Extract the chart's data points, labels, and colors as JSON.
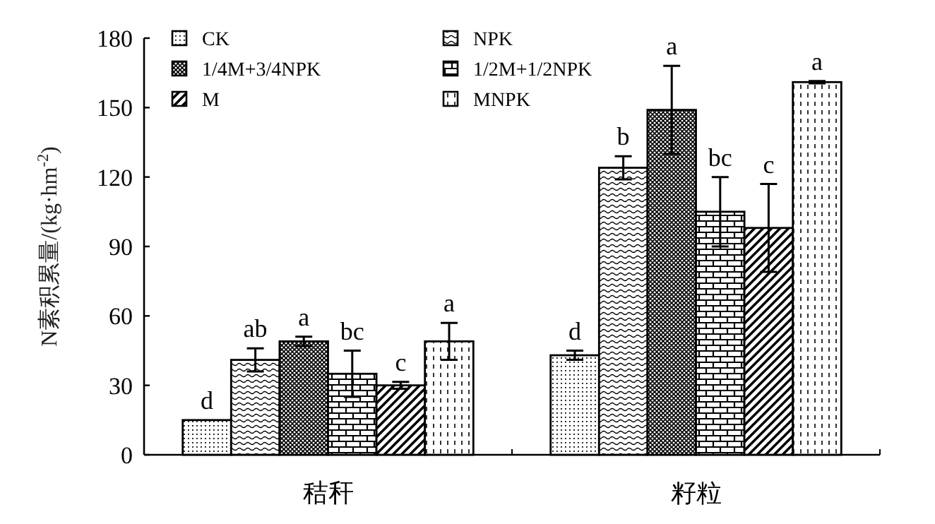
{
  "chart_data": {
    "type": "bar",
    "ylabel": "N素积累量/(kg·hm$^{-2}$)",
    "categories": [
      "秸秆",
      "籽粒"
    ],
    "ylim": [
      0,
      180
    ],
    "yticks": [
      0,
      30,
      60,
      90,
      120,
      150,
      180
    ],
    "legend": "top left",
    "grid": false,
    "series": [
      {
        "name": "CK",
        "color": "#000000",
        "values": [
          15,
          43
        ],
        "errors": [
          null,
          2
        ],
        "value_labels": [
          "d",
          "d"
        ]
      },
      {
        "name": "NPK",
        "color": "#000000",
        "values": [
          41,
          124
        ],
        "errors": [
          5,
          5
        ],
        "value_labels": [
          "ab",
          "b"
        ]
      },
      {
        "name": "1/4M+3/4NPK",
        "color": "#000000",
        "values": [
          49,
          149
        ],
        "errors": [
          2,
          19
        ],
        "value_labels": [
          "a",
          "a"
        ]
      },
      {
        "name": "1/2M+1/2NPK",
        "color": "#000000",
        "values": [
          35,
          105
        ],
        "errors": [
          10,
          15
        ],
        "value_labels": [
          "bc",
          "bc"
        ]
      },
      {
        "name": "M",
        "color": "#000000",
        "values": [
          30,
          98
        ],
        "errors": [
          1.5,
          19
        ],
        "value_labels": [
          "c",
          "c"
        ]
      },
      {
        "name": "MNPK",
        "color": "#000000",
        "values": [
          49,
          161
        ],
        "errors": [
          8,
          0.5
        ],
        "value_labels": [
          "a",
          "a"
        ]
      }
    ]
  }
}
